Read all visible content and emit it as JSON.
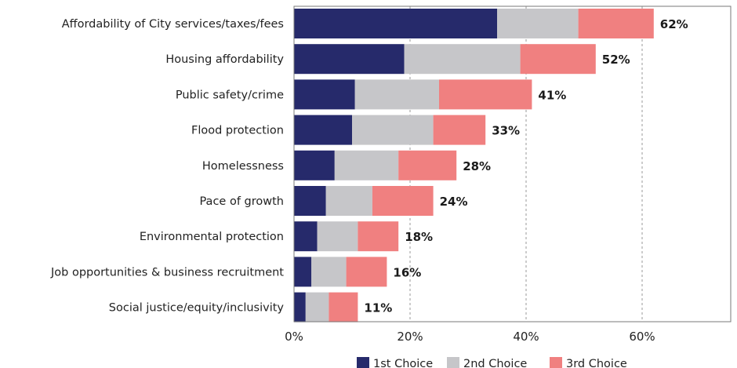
{
  "chart_data": {
    "type": "bar",
    "orientation": "horizontal",
    "stacked": true,
    "categories": [
      "Affordability of City services/taxes/fees",
      "Housing affordability",
      "Public safety/crime",
      "Flood protection",
      "Homelessness",
      "Pace of growth",
      "Environmental protection",
      "Job opportunities & business recruitment",
      "Social justice/equity/inclusivity"
    ],
    "series": [
      {
        "name": "1st Choice",
        "color": "#262a6b",
        "values": [
          35,
          19,
          10.5,
          10,
          7,
          5.5,
          4,
          3,
          2
        ]
      },
      {
        "name": "2nd Choice",
        "color": "#c6c6c9",
        "values": [
          14,
          20,
          14.5,
          14,
          11,
          8,
          7,
          6,
          4
        ]
      },
      {
        "name": "3rd Choice",
        "color": "#f08080",
        "values": [
          13,
          13,
          16,
          9,
          10,
          10.5,
          7,
          7,
          5
        ]
      }
    ],
    "totals": [
      "62%",
      "52%",
      "41%",
      "33%",
      "28%",
      "24%",
      "18%",
      "16%",
      "11%"
    ],
    "xlim": [
      0,
      75
    ],
    "xticks": [
      0,
      20,
      40,
      60
    ],
    "xtick_labels": [
      "0%",
      "20%",
      "40%",
      "60%"
    ],
    "grid": "vertical dashed",
    "legend_position": "bottom"
  }
}
